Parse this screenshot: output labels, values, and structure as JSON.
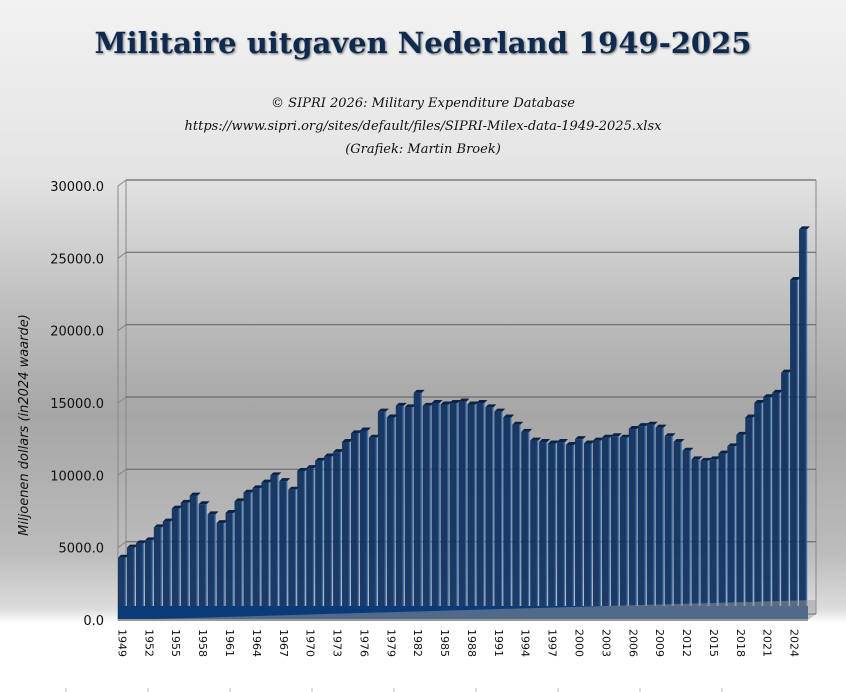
{
  "chart_data": {
    "type": "bar",
    "title": "Militaire uitgaven Nederland 1949-2025",
    "subtitle": [
      "© SIPRI 2026: Military Expenditure Database",
      "https://www.sipri.org/sites/default/files/SIPRI-Milex-data-1949-2025.xlsx",
      "(Grafiek: Martin Broek)"
    ],
    "xlabel": "",
    "ylabel": "Miljoenen dollars (in2024 waarde)",
    "ylim": [
      0,
      30000
    ],
    "yticks": [
      "0.0",
      "5000.0",
      "10000.0",
      "15000.0",
      "20000.0",
      "25000.0",
      "30000.0"
    ],
    "xtick_labels": [
      "1949",
      "1952",
      "1955",
      "1958",
      "1961",
      "1964",
      "1967",
      "1970",
      "1973",
      "1976",
      "1979",
      "1982",
      "1985",
      "1988",
      "1991",
      "1994",
      "1997",
      "2000",
      "2003",
      "2006",
      "2009",
      "2012",
      "2015",
      "2018",
      "2021",
      "2024"
    ],
    "grid": true,
    "categories": [
      1949,
      1950,
      1951,
      1952,
      1953,
      1954,
      1955,
      1956,
      1957,
      1958,
      1959,
      1960,
      1961,
      1962,
      1963,
      1964,
      1965,
      1966,
      1967,
      1968,
      1969,
      1970,
      1971,
      1972,
      1973,
      1974,
      1975,
      1976,
      1977,
      1978,
      1979,
      1980,
      1981,
      1982,
      1983,
      1984,
      1985,
      1986,
      1987,
      1988,
      1989,
      1990,
      1991,
      1992,
      1993,
      1994,
      1995,
      1996,
      1997,
      1998,
      1999,
      2000,
      2001,
      2002,
      2003,
      2004,
      2005,
      2006,
      2007,
      2008,
      2009,
      2010,
      2011,
      2012,
      2013,
      2014,
      2015,
      2016,
      2017,
      2018,
      2019,
      2020,
      2021,
      2022,
      2023,
      2024,
      2025
    ],
    "values": [
      4300,
      5000,
      5300,
      5500,
      6400,
      6800,
      7700,
      8100,
      8600,
      8000,
      7300,
      6700,
      7400,
      8200,
      8800,
      9100,
      9500,
      10000,
      9600,
      9000,
      10300,
      10500,
      11000,
      11300,
      11600,
      12300,
      12900,
      13100,
      12600,
      14400,
      14000,
      14800,
      14700,
      15700,
      14800,
      15000,
      14900,
      15000,
      15100,
      14900,
      15000,
      14700,
      14400,
      14000,
      13500,
      13000,
      12400,
      12300,
      12200,
      12300,
      12100,
      12500,
      12200,
      12400,
      12600,
      12700,
      12600,
      13200,
      13400,
      13500,
      13300,
      12700,
      12300,
      11700,
      11100,
      11000,
      11100,
      11500,
      12000,
      12800,
      14000,
      15000,
      15400,
      15700,
      17100,
      23500,
      27000
    ],
    "colors": {
      "bar": "#0d2f5e",
      "stripe": "#3d73b0",
      "title": "#0f2a4f"
    }
  }
}
